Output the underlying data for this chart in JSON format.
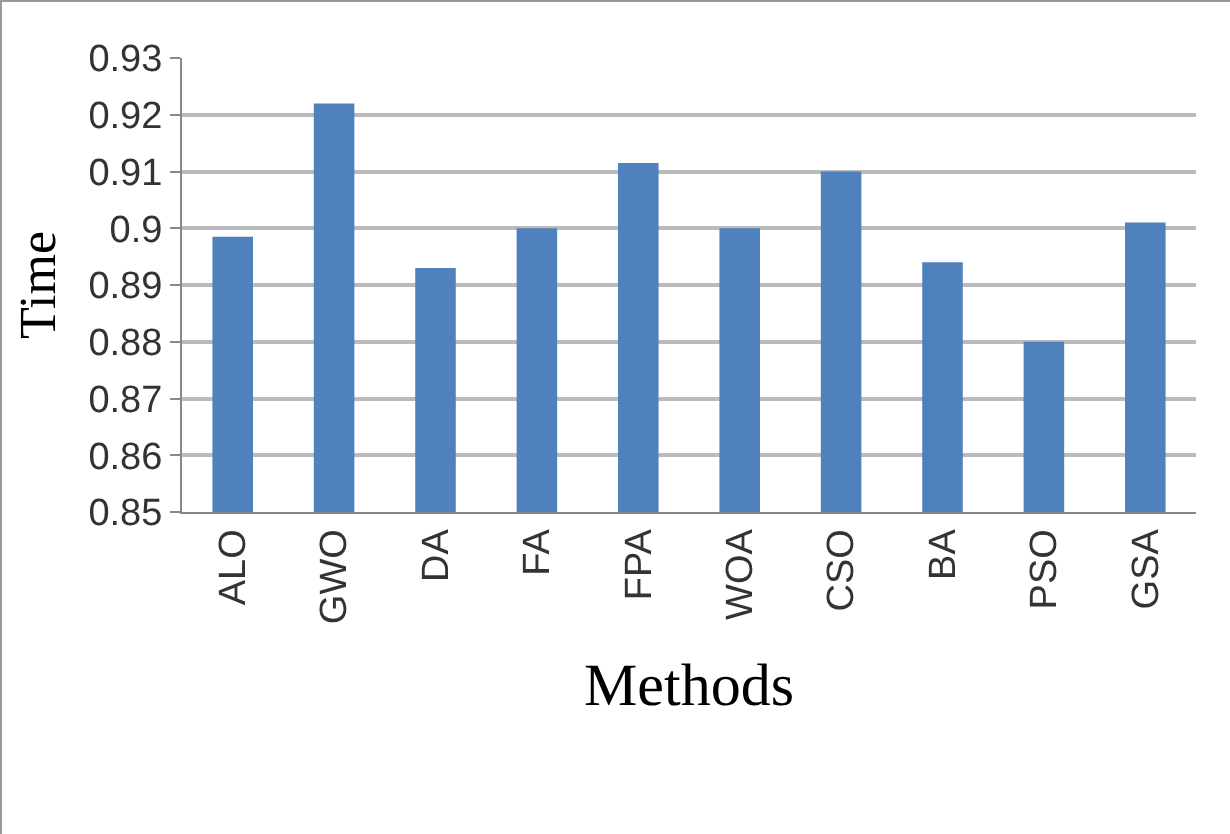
{
  "chart_data": {
    "type": "bar",
    "xlabel": "Methods",
    "ylabel": "Time",
    "categories": [
      "ALO",
      "GWO",
      "DA",
      "FA",
      "FPA",
      "WOA",
      "CSO",
      "BA",
      "PSO",
      "GSA"
    ],
    "values": [
      0.8985,
      0.922,
      0.893,
      0.9,
      0.9115,
      0.9,
      0.91,
      0.894,
      0.88,
      0.901
    ],
    "color": "#4f81bd",
    "ylim": [
      0.85,
      0.93
    ],
    "yticks": [
      0.85,
      0.86,
      0.87,
      0.88,
      0.89,
      {
        "value": 0.9,
        "label": "0.9"
      },
      0.91,
      0.92,
      0.93
    ],
    "grid": "y",
    "legend": false
  }
}
